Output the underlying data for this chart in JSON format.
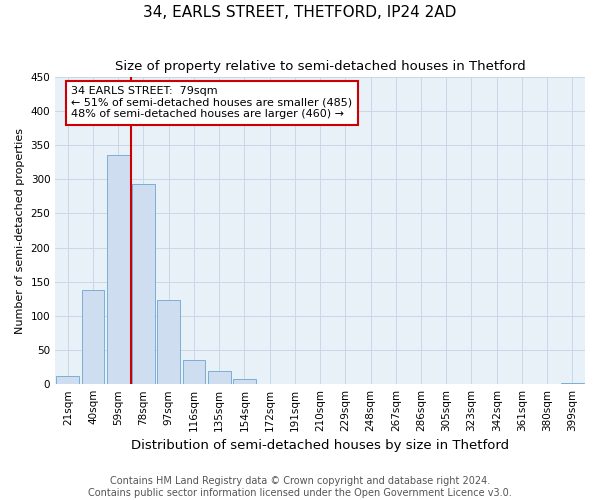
{
  "title": "34, EARLS STREET, THETFORD, IP24 2AD",
  "subtitle": "Size of property relative to semi-detached houses in Thetford",
  "xlabel": "Distribution of semi-detached houses by size in Thetford",
  "ylabel": "Number of semi-detached properties",
  "categories": [
    "21sqm",
    "40sqm",
    "59sqm",
    "78sqm",
    "97sqm",
    "116sqm",
    "135sqm",
    "154sqm",
    "172sqm",
    "191sqm",
    "210sqm",
    "229sqm",
    "248sqm",
    "267sqm",
    "286sqm",
    "305sqm",
    "323sqm",
    "342sqm",
    "361sqm",
    "380sqm",
    "399sqm"
  ],
  "values": [
    12,
    138,
    335,
    293,
    124,
    35,
    20,
    7,
    0,
    0,
    0,
    0,
    0,
    0,
    0,
    0,
    0,
    0,
    0,
    0,
    2
  ],
  "bar_color": "#cfddf0",
  "bar_edge_color": "#7aafd4",
  "red_line_index": 3,
  "annotation_line1": "34 EARLS STREET:  79sqm",
  "annotation_line2": "← 51% of semi-detached houses are smaller (485)",
  "annotation_line3": "48% of semi-detached houses are larger (460) →",
  "annotation_box_color": "#ffffff",
  "annotation_box_edge": "#cc0000",
  "red_line_color": "#cc0000",
  "ylim": [
    0,
    450
  ],
  "yticks": [
    0,
    50,
    100,
    150,
    200,
    250,
    300,
    350,
    400,
    450
  ],
  "footer_line1": "Contains HM Land Registry data © Crown copyright and database right 2024.",
  "footer_line2": "Contains public sector information licensed under the Open Government Licence v3.0.",
  "background_color": "#ffffff",
  "plot_bg_color": "#e8f0f8",
  "grid_color": "#c8d8e8",
  "title_fontsize": 11,
  "subtitle_fontsize": 9.5,
  "xlabel_fontsize": 9.5,
  "ylabel_fontsize": 8,
  "tick_fontsize": 7.5,
  "annotation_fontsize": 8,
  "footer_fontsize": 7
}
